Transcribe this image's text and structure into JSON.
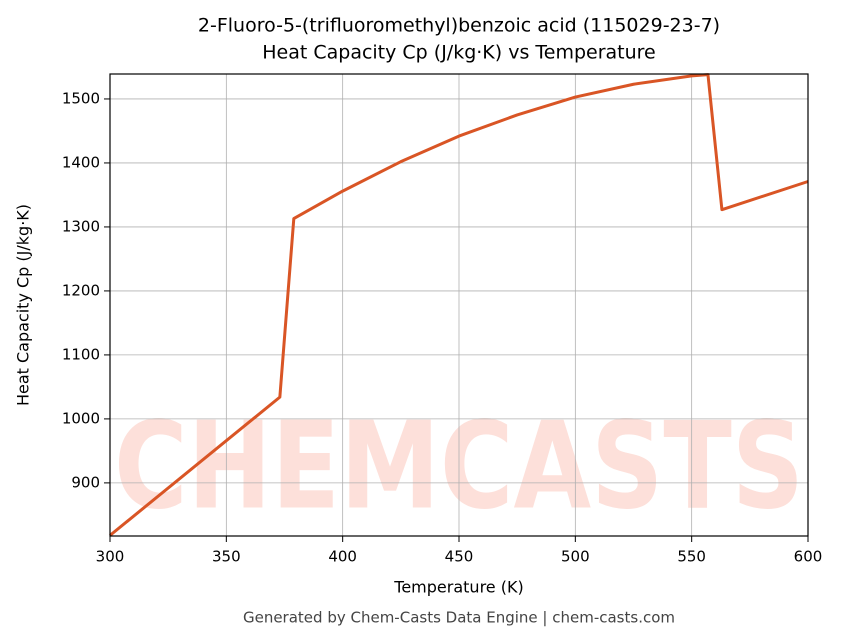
{
  "chart_data": {
    "type": "line",
    "title": "2-Fluoro-5-(trifluoromethyl)benzoic acid (115029-23-7)",
    "subtitle": "Heat Capacity Cp (J/kg·K) vs Temperature",
    "x_label": "Temperature (K)",
    "y_label": "Heat Capacity Cp (J/kg·K)",
    "watermark": "CHEMCASTS",
    "footer": "Generated by Chem-Casts Data Engine | chem-casts.com",
    "x": [
      300,
      373,
      379,
      400,
      425,
      450,
      475,
      500,
      525,
      550,
      557,
      563,
      600
    ],
    "series": [
      {
        "name": "Cp",
        "color": "#d95525",
        "values": [
          818,
          1034,
          1313,
          1356,
          1402,
          1442,
          1475,
          1503,
          1523,
          1536,
          1538,
          1327,
          1371
        ]
      }
    ],
    "xlim": [
      300,
      600
    ],
    "xticks": [
      300,
      350,
      400,
      450,
      500,
      550,
      600
    ],
    "ylim": [
      817,
      1539
    ],
    "yticks": [
      900,
      1000,
      1100,
      1200,
      1300,
      1400,
      1500
    ],
    "grid": true
  }
}
